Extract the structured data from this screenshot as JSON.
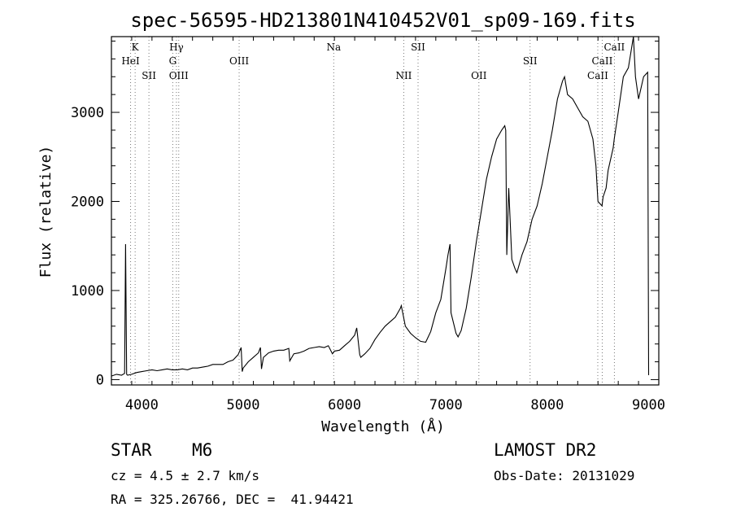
{
  "header": {
    "title": "spec-56595-HD213801N410452V01_sp09-169.fits"
  },
  "footer": {
    "object_class": "STAR",
    "subclass": "M6",
    "survey": "LAMOST DR2",
    "cz": "cz = 4.5 ± 2.7 km/s",
    "obs_date": "Obs-Date: 20131029",
    "radec": "RA = 325.26766, DEC =  41.94421"
  },
  "chart_data": {
    "type": "line",
    "title": "spec-56595-HD213801N410452V01_sp09-169.fits",
    "xlabel": "Wavelength (Å)",
    "ylabel": "Flux (relative)",
    "xlim": [
      3700,
      9100
    ],
    "ylim": [
      -60,
      3850
    ],
    "grid": false,
    "legend": "none",
    "x_ticks": [
      4000,
      5000,
      6000,
      7000,
      8000,
      9000
    ],
    "y_ticks": [
      0,
      1000,
      2000,
      3000
    ],
    "series": [
      {
        "x": [
          3700,
          3750,
          3800,
          3830,
          3840,
          3850,
          3860,
          3900,
          3950,
          4000,
          4050,
          4100,
          4150,
          4200,
          4250,
          4300,
          4350,
          4400,
          4450,
          4500,
          4550,
          4600,
          4650,
          4700,
          4750,
          4800,
          4850,
          4900,
          4950,
          4980,
          4990,
          5000,
          5050,
          5100,
          5150,
          5170,
          5180,
          5200,
          5250,
          5300,
          5350,
          5400,
          5450,
          5460,
          5500,
          5550,
          5600,
          5650,
          5700,
          5750,
          5800,
          5840,
          5880,
          5900,
          5950,
          6000,
          6050,
          6100,
          6120,
          6150,
          6160,
          6200,
          6250,
          6300,
          6350,
          6400,
          6450,
          6500,
          6550,
          6560,
          6600,
          6650,
          6700,
          6750,
          6800,
          6850,
          6900,
          6950,
          7000,
          7020,
          7040,
          7050,
          7100,
          7120,
          7150,
          7200,
          7250,
          7300,
          7350,
          7400,
          7450,
          7500,
          7550,
          7580,
          7590,
          7600,
          7620,
          7650,
          7680,
          7700,
          7750,
          7800,
          7850,
          7900,
          7950,
          8000,
          8050,
          8100,
          8150,
          8170,
          8200,
          8250,
          8300,
          8350,
          8400,
          8450,
          8480,
          8500,
          8540,
          8550,
          8580,
          8600,
          8650,
          8660,
          8700,
          8750,
          8800,
          8850,
          8870,
          8900,
          8950,
          8990,
          9000
        ],
        "y": [
          40,
          60,
          50,
          70,
          1520,
          60,
          50,
          60,
          80,
          90,
          100,
          110,
          100,
          110,
          120,
          110,
          110,
          120,
          110,
          130,
          130,
          140,
          150,
          170,
          170,
          170,
          200,
          220,
          280,
          360,
          90,
          130,
          200,
          250,
          300,
          360,
          120,
          250,
          300,
          320,
          330,
          330,
          350,
          210,
          290,
          300,
          320,
          350,
          360,
          370,
          360,
          380,
          290,
          320,
          330,
          380,
          430,
          500,
          580,
          280,
          250,
          290,
          350,
          450,
          530,
          600,
          650,
          700,
          800,
          830,
          600,
          520,
          470,
          430,
          420,
          540,
          750,
          900,
          1250,
          1400,
          1520,
          750,
          520,
          480,
          550,
          800,
          1150,
          1550,
          1900,
          2250,
          2500,
          2700,
          2800,
          2850,
          2800,
          1400,
          2150,
          1350,
          1250,
          1200,
          1400,
          1550,
          1800,
          1950,
          2200,
          2500,
          2800,
          3150,
          3350,
          3400,
          3200,
          3150,
          3050,
          2950,
          2900,
          2700,
          2400,
          2000,
          1950,
          2050,
          2150,
          2350,
          2600,
          2700,
          3000,
          3400,
          3500,
          3850,
          3400,
          3150,
          3400,
          3450,
          50
        ]
      }
    ],
    "annotations": [
      {
        "label": "K",
        "x": 3934,
        "row": 1
      },
      {
        "label": "HeI",
        "x": 3889,
        "row": 2
      },
      {
        "label": "SII",
        "x": 4070,
        "row": 3
      },
      {
        "label": "Hγ",
        "x": 4341,
        "row": 1
      },
      {
        "label": "G",
        "x": 4305,
        "row": 2
      },
      {
        "label": "OIII",
        "x": 4364,
        "row": 3
      },
      {
        "label": "OIII",
        "x": 4960,
        "row": 2
      },
      {
        "label": "Na",
        "x": 5893,
        "row": 1
      },
      {
        "label": "SII",
        "x": 6725,
        "row": 1
      },
      {
        "label": "NII",
        "x": 6584,
        "row": 3
      },
      {
        "label": "OII",
        "x": 7325,
        "row": 3
      },
      {
        "label": "SII",
        "x": 7830,
        "row": 2
      },
      {
        "label": "CaII",
        "x": 8662,
        "row": 1
      },
      {
        "label": "CaII",
        "x": 8542,
        "row": 2
      },
      {
        "label": "CaII",
        "x": 8498,
        "row": 3
      }
    ],
    "annotation_lines_x": [
      3889,
      3934,
      4070,
      4305,
      4341,
      4364,
      4960,
      5893,
      6584,
      6725,
      7325,
      7830,
      8498,
      8542,
      8662
    ]
  }
}
